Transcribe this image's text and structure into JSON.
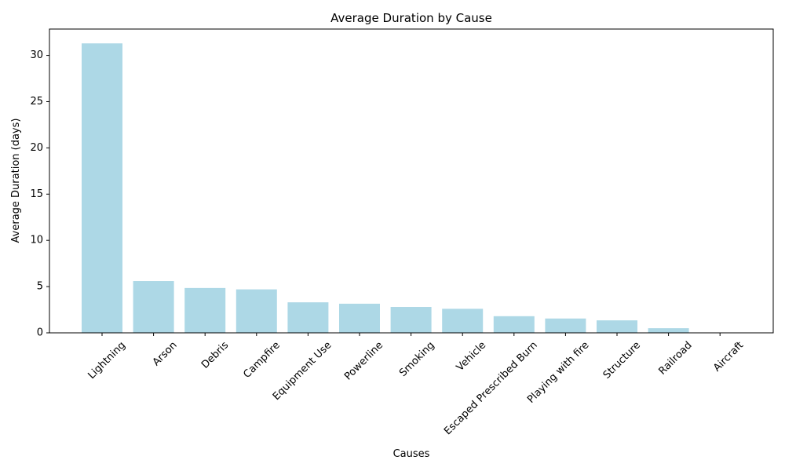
{
  "chart_data": {
    "type": "bar",
    "title": "Average Duration by Cause",
    "xlabel": "Causes",
    "ylabel": "Average Duration (days)",
    "categories": [
      "Lightning",
      "Arson",
      "Debris",
      "Campfire",
      "Equipment Use",
      "Powerline",
      "Smoking",
      "Vehicle",
      "Escaped Prescribed Burn",
      "Playing with fire",
      "Structure",
      "Railroad",
      "Aircraft"
    ],
    "values": [
      31.3,
      5.6,
      4.85,
      4.7,
      3.3,
      3.15,
      2.8,
      2.6,
      1.8,
      1.55,
      1.35,
      0.5,
      0.0
    ],
    "ylim": [
      0,
      32.85
    ],
    "yticks": [
      0,
      5,
      10,
      15,
      20,
      25,
      30
    ],
    "bar_color": "#add8e6",
    "grid": false,
    "legend": "none"
  }
}
